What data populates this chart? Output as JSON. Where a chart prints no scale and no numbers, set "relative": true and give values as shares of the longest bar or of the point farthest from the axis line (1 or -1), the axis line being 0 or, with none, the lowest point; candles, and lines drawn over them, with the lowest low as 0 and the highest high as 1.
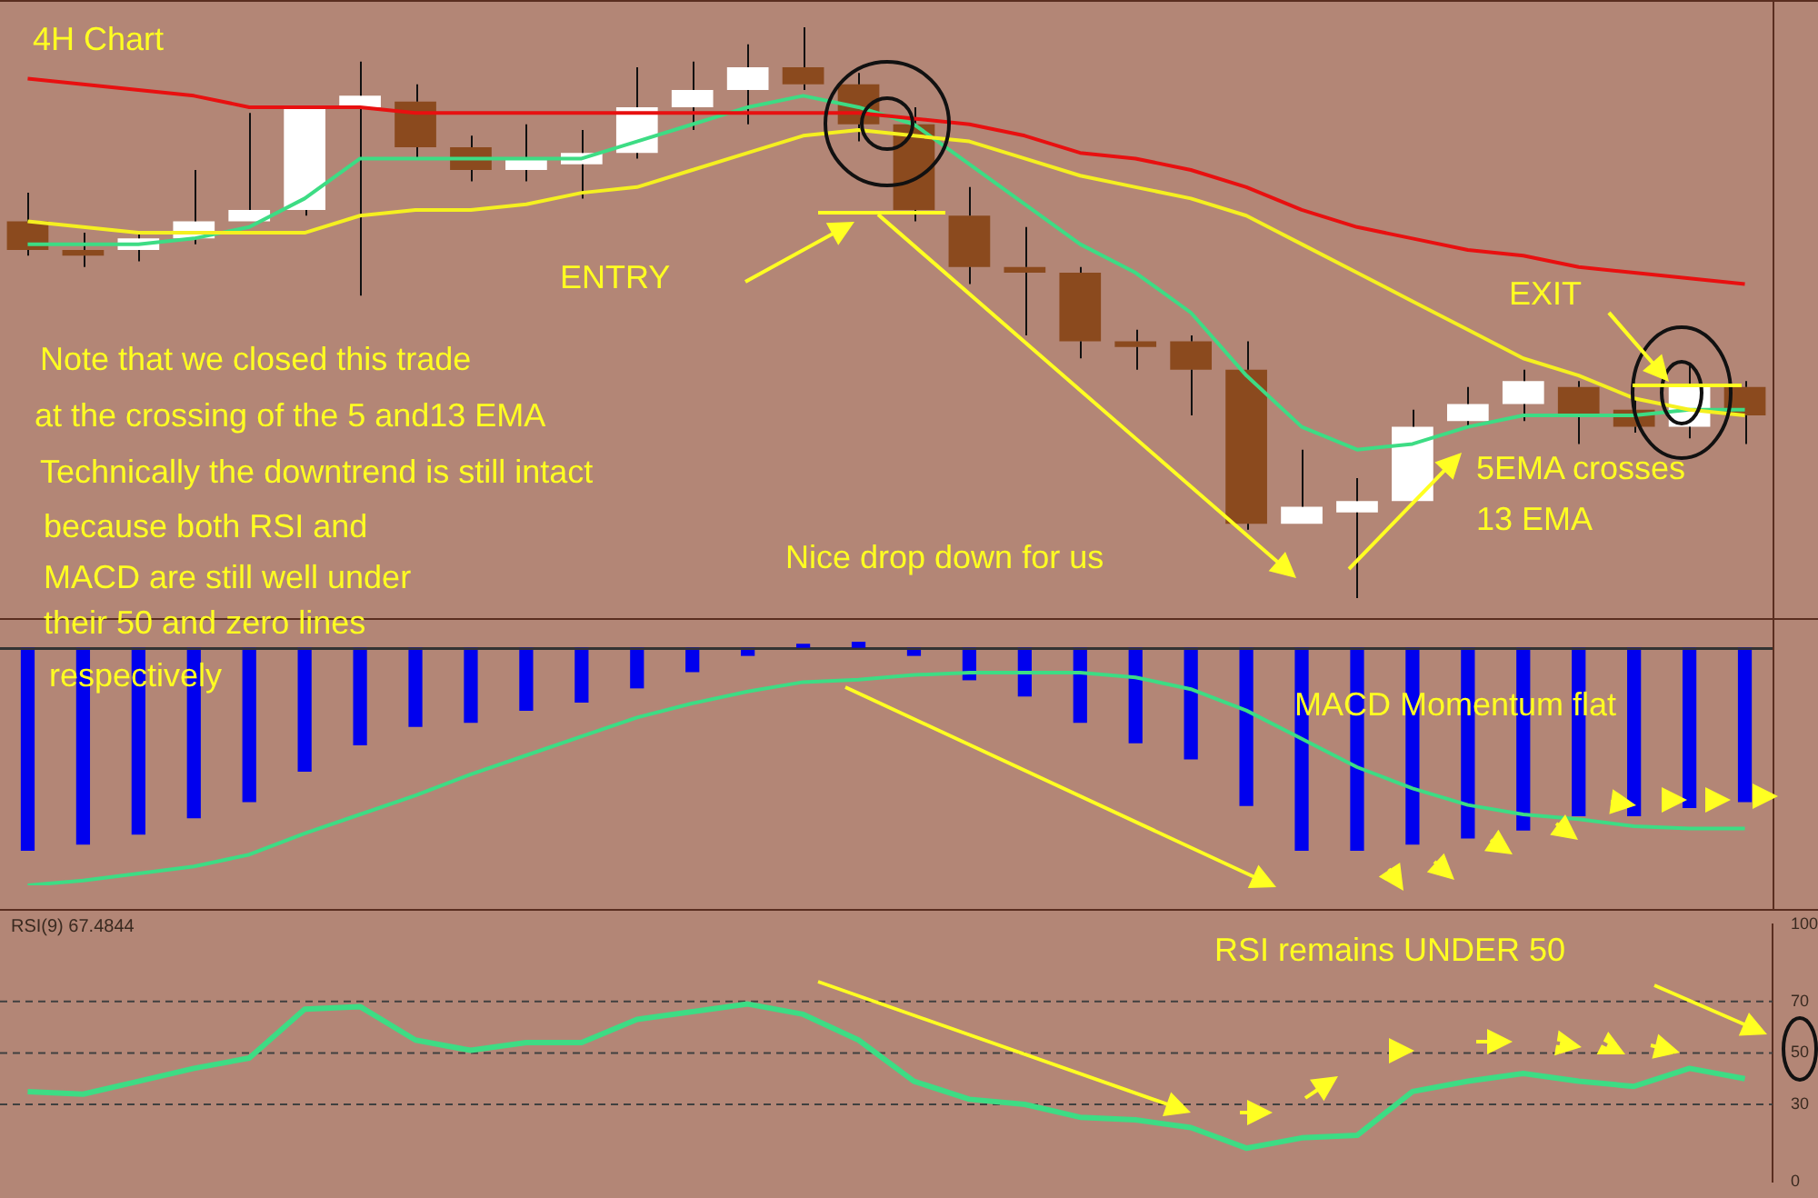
{
  "chart_data": [
    {
      "type": "candlestick",
      "title": "4H Chart",
      "relative": true,
      "categories": [
        null,
        null,
        null,
        null,
        null,
        null,
        null,
        null,
        null,
        null,
        null,
        null,
        null,
        null,
        null,
        null,
        null,
        null,
        null,
        null,
        null,
        null,
        null,
        null,
        null,
        null,
        null,
        null,
        null,
        null,
        null,
        null
      ],
      "ohlc": [
        [
          0.66,
          0.71,
          0.6,
          0.61
        ],
        [
          0.61,
          0.64,
          0.58,
          0.6
        ],
        [
          0.61,
          0.64,
          0.59,
          0.63
        ],
        [
          0.63,
          0.75,
          0.62,
          0.66
        ],
        [
          0.66,
          0.85,
          0.66,
          0.68
        ],
        [
          0.68,
          0.86,
          0.67,
          0.86
        ],
        [
          0.86,
          0.94,
          0.53,
          0.88
        ],
        [
          0.87,
          0.9,
          0.77,
          0.79
        ],
        [
          0.79,
          0.81,
          0.73,
          0.75
        ],
        [
          0.75,
          0.83,
          0.73,
          0.77
        ],
        [
          0.76,
          0.82,
          0.7,
          0.78
        ],
        [
          0.78,
          0.93,
          0.77,
          0.86
        ],
        [
          0.86,
          0.94,
          0.82,
          0.89
        ],
        [
          0.89,
          0.97,
          0.83,
          0.93
        ],
        [
          0.93,
          1.0,
          0.89,
          0.9
        ],
        [
          0.9,
          0.92,
          0.8,
          0.83
        ],
        [
          0.83,
          0.86,
          0.66,
          0.68
        ],
        [
          0.67,
          0.72,
          0.55,
          0.58
        ],
        [
          0.58,
          0.65,
          0.46,
          0.57
        ],
        [
          0.57,
          0.58,
          0.42,
          0.45
        ],
        [
          0.45,
          0.47,
          0.4,
          0.44
        ],
        [
          0.45,
          0.46,
          0.32,
          0.4
        ],
        [
          0.4,
          0.45,
          0.12,
          0.13
        ],
        [
          0.13,
          0.26,
          0.13,
          0.16
        ],
        [
          0.15,
          0.21,
          0,
          0.17
        ],
        [
          0.17,
          0.33,
          0.17,
          0.3
        ],
        [
          0.31,
          0.37,
          0.3,
          0.34
        ],
        [
          0.34,
          0.4,
          0.31,
          0.38
        ],
        [
          0.37,
          0.38,
          0.27,
          0.32
        ],
        [
          0.33,
          0.35,
          0.29,
          0.3
        ],
        [
          0.3,
          0.41,
          0.28,
          0.37
        ],
        [
          0.37,
          0.38,
          0.27,
          0.32
        ]
      ],
      "colors": [
        "#8b4a1e",
        "#8b4a1e",
        "#ffffff",
        "#ffffff",
        "#ffffff",
        "#ffffff",
        "#ffffff",
        "#8b4a1e",
        "#8b4a1e",
        "#ffffff",
        "#ffffff",
        "#ffffff",
        "#ffffff",
        "#ffffff",
        "#8b4a1e",
        "#8b4a1e",
        "#8b4a1e",
        "#8b4a1e",
        "#8b4a1e",
        "#8b4a1e",
        "#8b4a1e",
        "#8b4a1e",
        "#8b4a1e",
        "#ffffff",
        "#ffffff",
        "#ffffff",
        "#ffffff",
        "#ffffff",
        "#8b4a1e",
        "#8b4a1e",
        "#ffffff",
        "#8b4a1e"
      ],
      "series": [
        {
          "type": "line",
          "color": "#e81010",
          "values": [
            0.91,
            0.9,
            0.89,
            0.88,
            0.86,
            0.86,
            0.86,
            0.85,
            0.85,
            0.85,
            0.85,
            0.85,
            0.85,
            0.85,
            0.85,
            0.85,
            0.84,
            0.83,
            0.81,
            0.78,
            0.77,
            0.75,
            0.72,
            0.68,
            0.65,
            0.63,
            0.61,
            0.6,
            0.58,
            0.57,
            0.56,
            0.55
          ]
        },
        {
          "type": "line",
          "color": "#f5f020",
          "values": [
            0.66,
            0.65,
            0.64,
            0.64,
            0.64,
            0.64,
            0.67,
            0.68,
            0.68,
            0.69,
            0.71,
            0.72,
            0.75,
            0.78,
            0.81,
            0.82,
            0.81,
            0.8,
            0.77,
            0.74,
            0.72,
            0.7,
            0.67,
            0.62,
            0.57,
            0.52,
            0.47,
            0.42,
            0.39,
            0.35,
            0.33,
            0.32
          ]
        },
        {
          "type": "line",
          "color": "#3ddc84",
          "values": [
            0.62,
            0.62,
            0.62,
            0.63,
            0.65,
            0.7,
            0.77,
            0.77,
            0.77,
            0.77,
            0.77,
            0.8,
            0.83,
            0.86,
            0.88,
            0.86,
            0.83,
            0.76,
            0.69,
            0.62,
            0.57,
            0.5,
            0.39,
            0.3,
            0.26,
            0.27,
            0.3,
            0.32,
            0.32,
            0.32,
            0.33,
            0.33
          ]
        }
      ],
      "annotations": [
        "ENTRY",
        "Note that we closed this trade",
        "at the crossing of the 5 and13 EMA",
        "Technically the downtrend is still intact",
        "because both RSI and",
        "MACD are still well under",
        "their 50 and zero lines",
        "respectively",
        "Nice drop down for us",
        "EXIT",
        "5EMA crosses",
        "13 EMA"
      ]
    },
    {
      "type": "bar",
      "relative": true,
      "categories": [
        null,
        null,
        null,
        null,
        null,
        null,
        null,
        null,
        null,
        null,
        null,
        null,
        null,
        null,
        null,
        null,
        null,
        null,
        null,
        null,
        null,
        null,
        null,
        null,
        null,
        null,
        null,
        null,
        null,
        null,
        null,
        null
      ],
      "series": [
        {
          "type": "bar",
          "color": "#0000ee",
          "values": [
            -1.0,
            -0.97,
            -0.92,
            -0.84,
            -0.76,
            -0.61,
            -0.48,
            -0.39,
            -0.37,
            -0.31,
            -0.27,
            -0.2,
            -0.12,
            -0.04,
            0.02,
            0.03,
            -0.04,
            -0.16,
            -0.24,
            -0.37,
            -0.47,
            -0.55,
            -0.78,
            -1.0,
            -1.0,
            -0.97,
            -0.94,
            -0.9,
            -0.83,
            -0.83,
            -0.79,
            -0.76
          ]
        }
      ],
      "annotations": [
        "MACD Momentum flat"
      ]
    },
    {
      "type": "line",
      "relative": true,
      "categories": [
        null,
        null,
        null,
        null,
        null,
        null,
        null,
        null,
        null,
        null,
        null,
        null,
        null,
        null,
        null,
        null,
        null,
        null,
        null,
        null,
        null,
        null,
        null,
        null,
        null,
        null,
        null,
        null,
        null,
        null,
        null,
        null
      ],
      "series": [
        {
          "color": "#3ddc84",
          "values": [
            -1.0,
            -0.98,
            -0.95,
            -0.92,
            -0.87,
            -0.78,
            -0.7,
            -0.62,
            -0.53,
            -0.45,
            -0.37,
            -0.29,
            -0.23,
            -0.18,
            -0.14,
            -0.13,
            -0.11,
            -0.1,
            -0.1,
            -0.1,
            -0.12,
            -0.17,
            -0.26,
            -0.38,
            -0.5,
            -0.59,
            -0.66,
            -0.7,
            -0.72,
            -0.75,
            -0.76,
            -0.76
          ]
        }
      ]
    },
    {
      "type": "line",
      "title": "RSI(9) 67.4844",
      "tick_labels": "y",
      "categories": [
        null,
        null,
        null,
        null,
        null,
        null,
        null,
        null,
        null,
        null,
        null,
        null,
        null,
        null,
        null,
        null,
        null,
        null,
        null,
        null,
        null,
        null,
        null,
        null,
        null,
        null,
        null,
        null,
        null,
        null,
        null,
        null
      ],
      "series": [
        {
          "color": "#3ddc84",
          "values": [
            35,
            34,
            39,
            44,
            48,
            67,
            68,
            55,
            51,
            54,
            54,
            63,
            66,
            69,
            65,
            55,
            39,
            32,
            30,
            25,
            24,
            21,
            13,
            17,
            18,
            35,
            39,
            42,
            39,
            37,
            44,
            40
          ]
        }
      ],
      "ylim": [
        0,
        100
      ],
      "yticks": [
        0,
        30,
        50,
        70,
        100
      ],
      "ref_lines": [
        {
          "axis": "y",
          "value": 30,
          "color": "#404040",
          "line_style": "dashed"
        },
        {
          "axis": "y",
          "value": 50,
          "color": "#404040",
          "line_style": "dashed"
        },
        {
          "axis": "y",
          "value": 70,
          "color": "#404040",
          "line_style": "dashed"
        }
      ],
      "annotations": [
        "RSI remains UNDER 50"
      ]
    }
  ]
}
